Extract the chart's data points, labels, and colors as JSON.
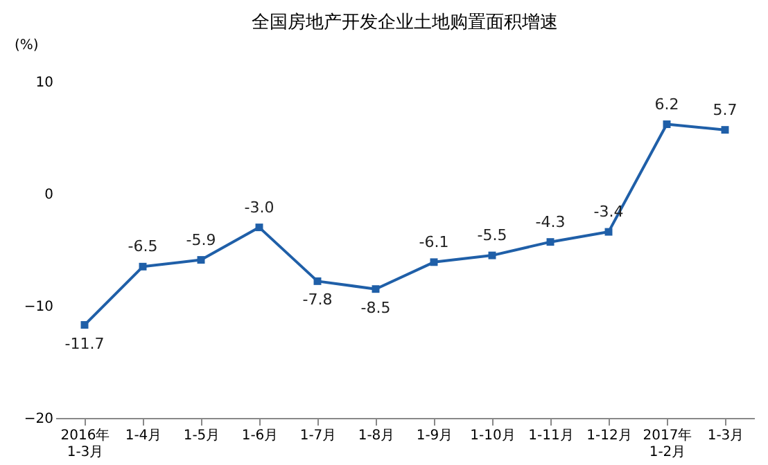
{
  "chart_data": {
    "type": "line",
    "title": "全国房地产开发企业土地购置面积增速",
    "ylabel": "(%)",
    "categories": [
      "2016年\n1-3月",
      "1-4月",
      "1-5月",
      "1-6月",
      "1-7月",
      "1-8月",
      "1-9月",
      "1-10月",
      "1-11月",
      "1-12月",
      "2017年\n1-2月",
      "1-3月"
    ],
    "series": [
      {
        "color": "#1f5fa8",
        "values": [
          -11.7,
          -6.5,
          -5.9,
          -3.0,
          -7.8,
          -8.5,
          -6.1,
          -5.5,
          -4.3,
          -3.4,
          6.2,
          5.7
        ],
        "value_labels": [
          "-11.7",
          "-6.5",
          "-5.9",
          "-3.0",
          "-7.8",
          "-8.5",
          "-6.1",
          "-5.5",
          "-4.3",
          "-3.4",
          "6.2",
          "5.7"
        ]
      }
    ],
    "ylim": [
      -20,
      10
    ],
    "yticks": [
      -20,
      -10,
      0,
      10
    ],
    "grid": false,
    "marker": "square",
    "line_style": "solid"
  }
}
